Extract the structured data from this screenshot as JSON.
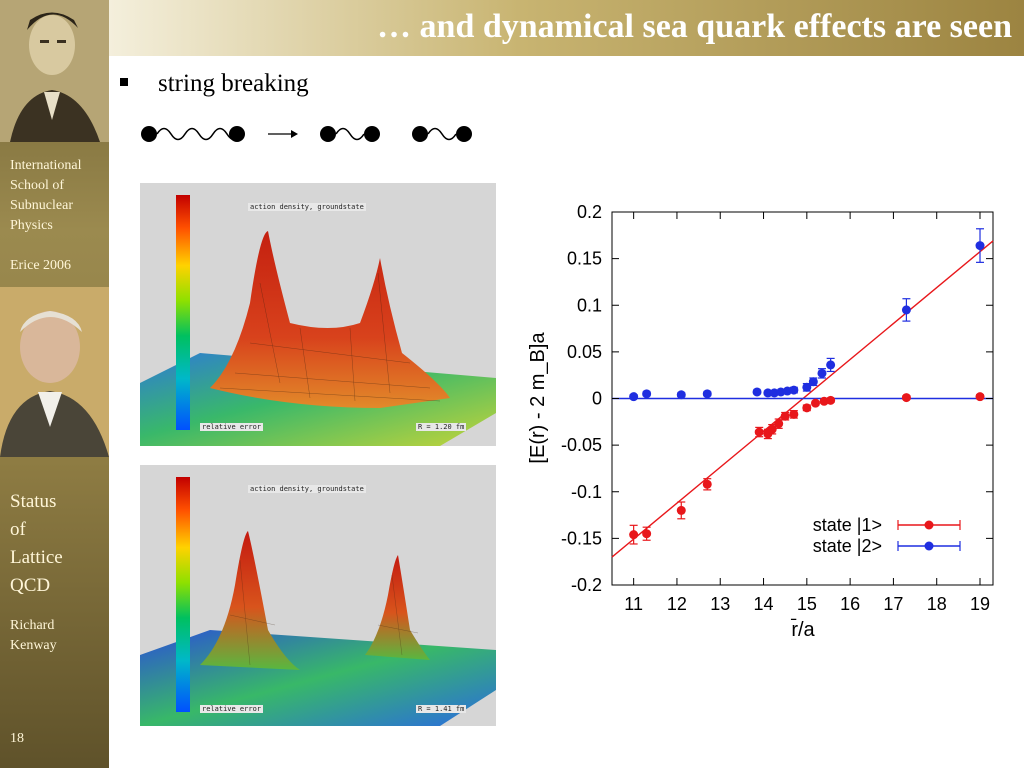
{
  "slide": {
    "title": "… and dynamical sea quark effects are seen",
    "bullet": "string breaking",
    "page_number": "18"
  },
  "sidebar": {
    "school_lines": [
      "International",
      "School of",
      "Subnuclear",
      "Physics"
    ],
    "event": "Erice 2006",
    "talk_lines": [
      "Status",
      "of",
      "Lattice",
      "QCD"
    ],
    "author_lines": [
      "Richard",
      "Kenway"
    ]
  },
  "panels": [
    {
      "top_label": "action density, groundstate",
      "bottom_left": "relative error",
      "bottom_right": "R = 1.20 fm"
    },
    {
      "top_label": "action density, groundstate",
      "bottom_left": "relative error",
      "bottom_right": "R = 1.41 fm"
    }
  ],
  "colors": {
    "state1": "#e8171b",
    "state2": "#1f2ee0",
    "sidebar": "#8e7c43",
    "title_text": "#ffffff"
  },
  "chart_data": {
    "type": "scatter",
    "xlabel": "r̄/a",
    "ylabel": "[E(r) - 2 m_B]a",
    "xlim": [
      10.5,
      19.3
    ],
    "ylim": [
      -0.2,
      0.2
    ],
    "xticks": [
      11,
      12,
      13,
      14,
      15,
      16,
      17,
      18,
      19
    ],
    "yticks": [
      0.2,
      0.15,
      0.1,
      0.05,
      0,
      -0.05,
      -0.1,
      -0.15,
      -0.2
    ],
    "ytick_labels": [
      "0.2",
      "0.15",
      "0.1",
      "0.05",
      "0",
      "-0.05",
      "-0.1",
      "-0.15",
      "-0.2"
    ],
    "legend_position": "bottom-right",
    "series": [
      {
        "name": "state |1>",
        "color": "#e8171b",
        "x": [
          11.0,
          11.3,
          12.1,
          12.7,
          13.9,
          14.1,
          14.2,
          14.35,
          14.5,
          14.7,
          15.0,
          15.2,
          15.4,
          15.55,
          17.3,
          19.0
        ],
        "y": [
          -0.146,
          -0.145,
          -0.12,
          -0.092,
          -0.036,
          -0.038,
          -0.033,
          -0.027,
          -0.019,
          -0.017,
          -0.01,
          -0.005,
          -0.003,
          -0.002,
          0.001,
          0.002
        ],
        "err": [
          0.01,
          0.007,
          0.009,
          0.006,
          0.005,
          0.005,
          0.005,
          0.005,
          0.004,
          0.004,
          0.003,
          0.002,
          0.002,
          0.002,
          0.002,
          0.002
        ]
      },
      {
        "name": "state |2>",
        "color": "#1f2ee0",
        "x": [
          11.0,
          11.3,
          12.1,
          12.7,
          13.85,
          14.1,
          14.25,
          14.4,
          14.55,
          14.7,
          15.0,
          15.15,
          15.35,
          15.55,
          17.3,
          19.0
        ],
        "y": [
          0.002,
          0.005,
          0.004,
          0.005,
          0.007,
          0.006,
          0.006,
          0.007,
          0.008,
          0.009,
          0.012,
          0.018,
          0.027,
          0.036,
          0.095,
          0.164
        ],
        "err": [
          0.002,
          0.002,
          0.002,
          0.002,
          0.002,
          0.002,
          0.002,
          0.002,
          0.002,
          0.003,
          0.004,
          0.004,
          0.005,
          0.007,
          0.012,
          0.018
        ]
      }
    ],
    "fit_lines": [
      {
        "color": "#e8171b",
        "x": [
          10.5,
          19.3
        ],
        "y": [
          -0.17,
          0.169
        ]
      },
      {
        "color": "#1f2ee0",
        "x": [
          10.5,
          19.3
        ],
        "y": [
          0.0,
          0.0
        ]
      }
    ]
  }
}
